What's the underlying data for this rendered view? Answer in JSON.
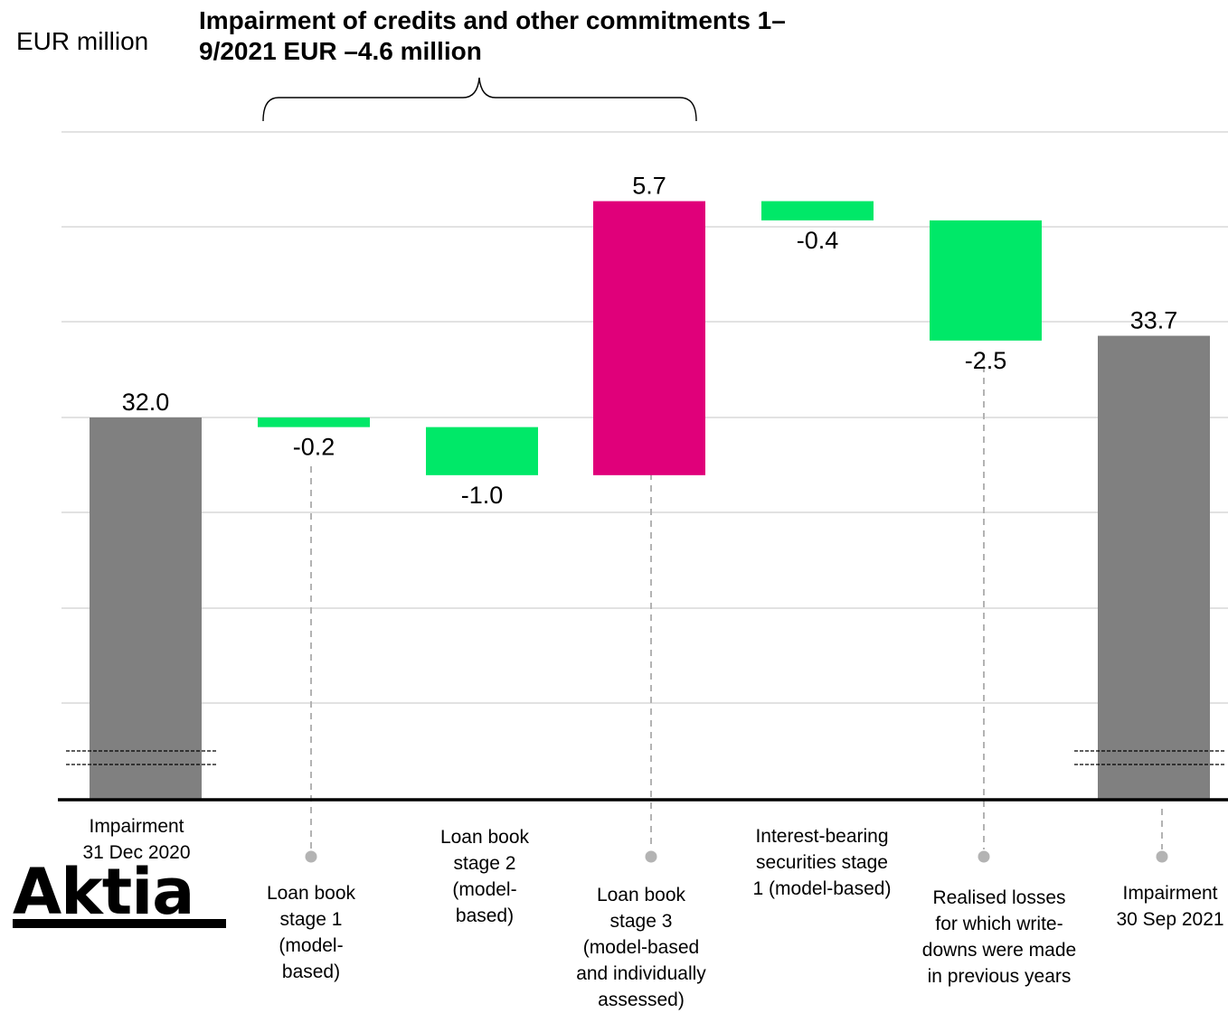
{
  "unit_label": "EUR million",
  "bracket_title": "Impairment of credits and other commitments 1–9/2021 EUR –4.6 million",
  "brand": {
    "logo_text": "Aktia"
  },
  "colors": {
    "total": "#808080",
    "decrease": "#00e868",
    "increase": "#e0007a",
    "grid": "#d9d9d9",
    "axis": "#000000",
    "leader": "#b3b3b3"
  },
  "chart_data": {
    "type": "bar",
    "subtype": "waterfall",
    "categories": [
      "Impairment\n31 Dec 2020",
      "Loan book\nstage 1\n(model-\nbased)",
      "Loan book\nstage 2\n(model-\nbased)",
      "Loan book\nstage 3\n(model-based\nand individually\nassessed)",
      "Interest-bearing\nsecurities stage\n1 (model-based)",
      "Realised losses\nfor which write-\ndowns were made\nin previous years",
      "Impairment\n30 Sep 2021"
    ],
    "values": [
      32.0,
      -0.2,
      -1.0,
      5.7,
      -0.4,
      -2.5,
      33.7
    ],
    "value_labels": [
      "32.0",
      "-0.2",
      "-1.0",
      "5.7",
      "-0.4",
      "-2.5",
      "33.7"
    ],
    "kinds": [
      "total",
      "delta",
      "delta",
      "delta",
      "delta",
      "delta",
      "total"
    ],
    "axis_break": true,
    "grid": true
  }
}
